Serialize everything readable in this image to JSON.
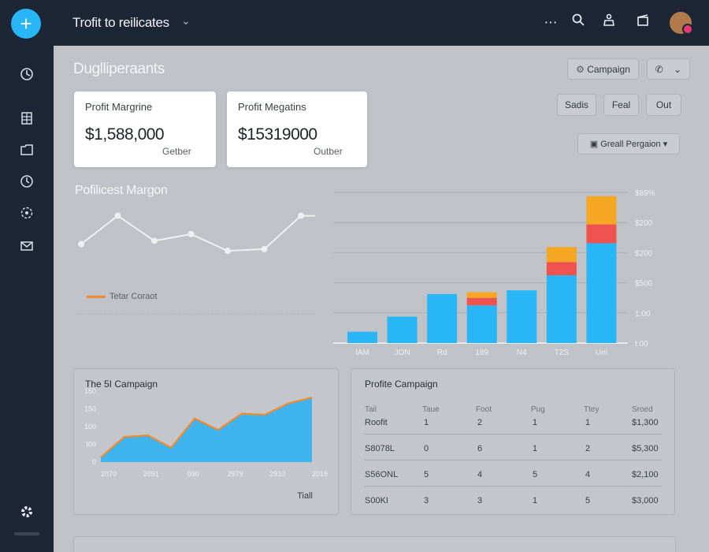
{
  "header": {
    "title": "Trofit to reilicates",
    "icons": [
      "plus-icon",
      "more-icon",
      "search-icon",
      "user-icon",
      "gift-icon",
      "avatar"
    ]
  },
  "page": {
    "title": "Duglliperaants",
    "campaign_button": "Campaign",
    "filters": [
      "Sadis",
      "Feal",
      "Out"
    ],
    "group_select": "Greall Pergaion"
  },
  "cards": [
    {
      "label": "Profit Margrine",
      "value": "$1,588,000",
      "sub": "Getber"
    },
    {
      "label": "Profit Megatins",
      "value": "$15319000",
      "sub": "Outber"
    }
  ],
  "line_section": {
    "title": "Pofilicest Margon",
    "legend": "Tetar Coraot"
  },
  "colors": {
    "accent": "#29b6f6",
    "orange": "#f5a623",
    "red": "#ef5350",
    "sidebar": "#1c2635"
  },
  "chart_data": [
    {
      "type": "line",
      "x": [
        1,
        2,
        3,
        4,
        5,
        6,
        7
      ],
      "series": [
        {
          "values": [
            310,
            395,
            320,
            340,
            290,
            295,
            395
          ]
        }
      ],
      "ylim": [
        250,
        420
      ],
      "grid": false
    },
    {
      "type": "bar",
      "categories": [
        "IAM",
        "JON",
        "Rd",
        "189",
        "N4",
        "T2S",
        "Uel"
      ],
      "series": [
        {
          "values": [
            30,
            70,
            130,
            100,
            140,
            180,
            265
          ]
        },
        {
          "values": [
            0,
            0,
            0,
            20,
            0,
            35,
            50
          ]
        },
        {
          "values": [
            0,
            0,
            0,
            15,
            0,
            40,
            75
          ]
        }
      ],
      "ytick_labels": [
        "I:00",
        "1:00",
        "$500",
        "$200",
        "$200",
        "$89%"
      ],
      "ylim": [
        0,
        400
      ],
      "grid": true
    },
    {
      "type": "area",
      "title": "The 5I Campaign",
      "x_labels": [
        "2070",
        "2091",
        "090",
        "2979",
        "2910",
        "2019"
      ],
      "ytick_labels": [
        "0",
        "I00",
        "100",
        "150",
        "150"
      ],
      "xlabel": "Tiall",
      "values": [
        15,
        78,
        83,
        45,
        135,
        100,
        150,
        147,
        182,
        200
      ],
      "ylim": [
        0,
        220
      ]
    }
  ],
  "table": {
    "title": "Profite Campaign",
    "headers": [
      "Tail",
      "Taue",
      "Foot",
      "Pug",
      "Ttey",
      "Sroed"
    ],
    "rows": [
      [
        "Roofit",
        "1",
        "2",
        "1",
        "1",
        "$1,300"
      ],
      [
        "S8078L",
        "0",
        "6",
        "1",
        "2",
        "$5,300"
      ],
      [
        "S56ONL",
        "5",
        "4",
        "5",
        "4",
        "$2,100"
      ],
      [
        "S00KI",
        "3",
        "3",
        "1",
        "5",
        "$3,000"
      ]
    ]
  }
}
